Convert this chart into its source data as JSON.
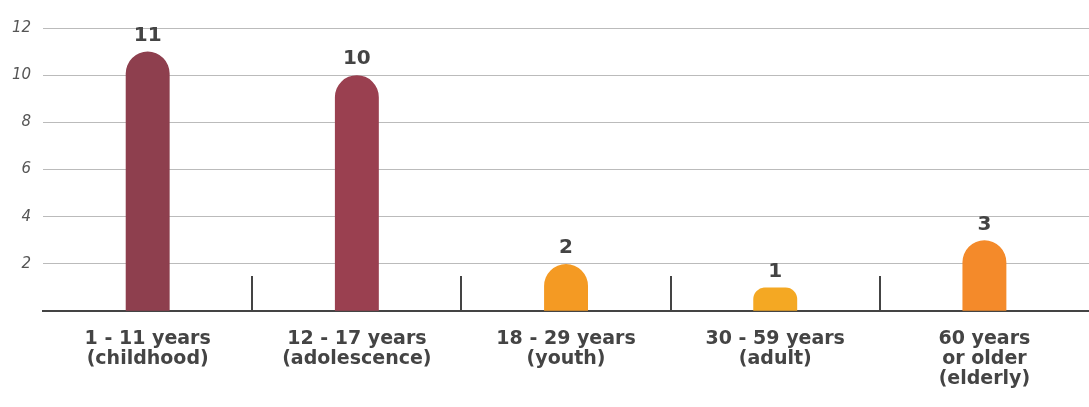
{
  "chart_data": {
    "type": "bar",
    "categories": [
      "1 - 11 years\n(childhood)",
      "12 - 17 years\n(adolescence)",
      "18 - 29 years\n(youth)",
      "30 - 59 years\n(adult)",
      "60 years\nor older\n(elderly)"
    ],
    "values": [
      11,
      10,
      2,
      1,
      3
    ],
    "colors": [
      "#8e3f4e",
      "#9a4050",
      "#f49a23",
      "#f4a823",
      "#f48a2a"
    ],
    "data_labels": true,
    "ylim": [
      0,
      12
    ],
    "yticks": [
      {
        "value": 0,
        "label": null
      },
      2,
      4,
      6,
      8,
      10,
      12
    ],
    "grid": "y",
    "legend": false
  }
}
